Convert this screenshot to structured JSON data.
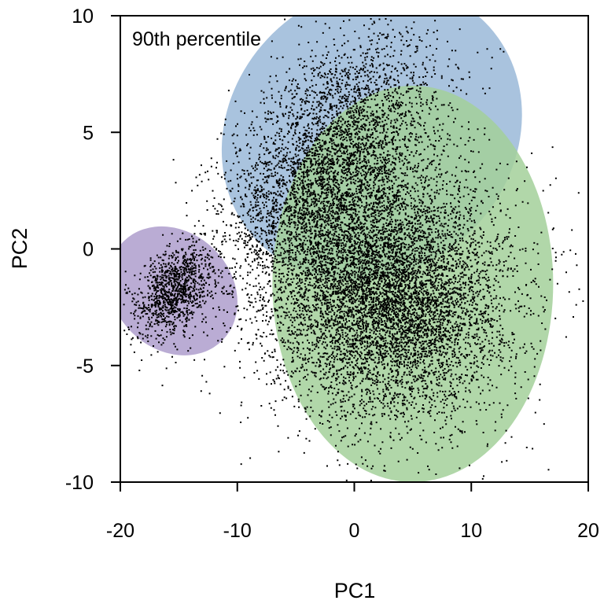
{
  "chart_data": {
    "type": "scatter",
    "title": "",
    "annotation": "90th percentile",
    "xlabel": "PC1",
    "ylabel": "PC2",
    "xlim": [
      -20,
      20
    ],
    "ylim": [
      -10,
      10
    ],
    "xticks": [
      -20,
      -10,
      0,
      10,
      20
    ],
    "yticks": [
      -10,
      -5,
      0,
      5,
      10
    ],
    "xtick_labels": [
      "-20",
      "-10",
      "0",
      "10",
      "20"
    ],
    "ytick_labels": [
      "-10",
      "-5",
      "0",
      "5",
      "10"
    ],
    "grid": false,
    "legend": "none",
    "point_color": "#000000",
    "ellipses": [
      {
        "cx": 1.5,
        "cy": 5.0,
        "rx": 13.5,
        "ry": 6.0,
        "angle_deg": 42,
        "color": "#9ab9d8",
        "opacity": 0.85
      },
      {
        "cx": 5.0,
        "cy": -1.5,
        "rx": 12.0,
        "ry": 8.5,
        "angle_deg": 0,
        "color": "#a3d09a",
        "opacity": 0.85
      },
      {
        "cx": -15.5,
        "cy": -1.8,
        "rx": 5.0,
        "ry": 3.0,
        "angle_deg": 45,
        "color": "#b2a3cf",
        "opacity": 0.9
      }
    ],
    "clusters": [
      {
        "cx": -2.0,
        "cy": 3.5,
        "sx": 4.5,
        "sy": 2.8,
        "rho": 0.45,
        "n": 4200
      },
      {
        "cx": 3.0,
        "cy": -2.0,
        "sx": 5.0,
        "sy": 2.6,
        "rho": 0.0,
        "n": 7200
      },
      {
        "cx": -15.5,
        "cy": -1.8,
        "sx": 1.6,
        "sy": 1.0,
        "rho": 0.4,
        "n": 1100
      }
    ]
  }
}
